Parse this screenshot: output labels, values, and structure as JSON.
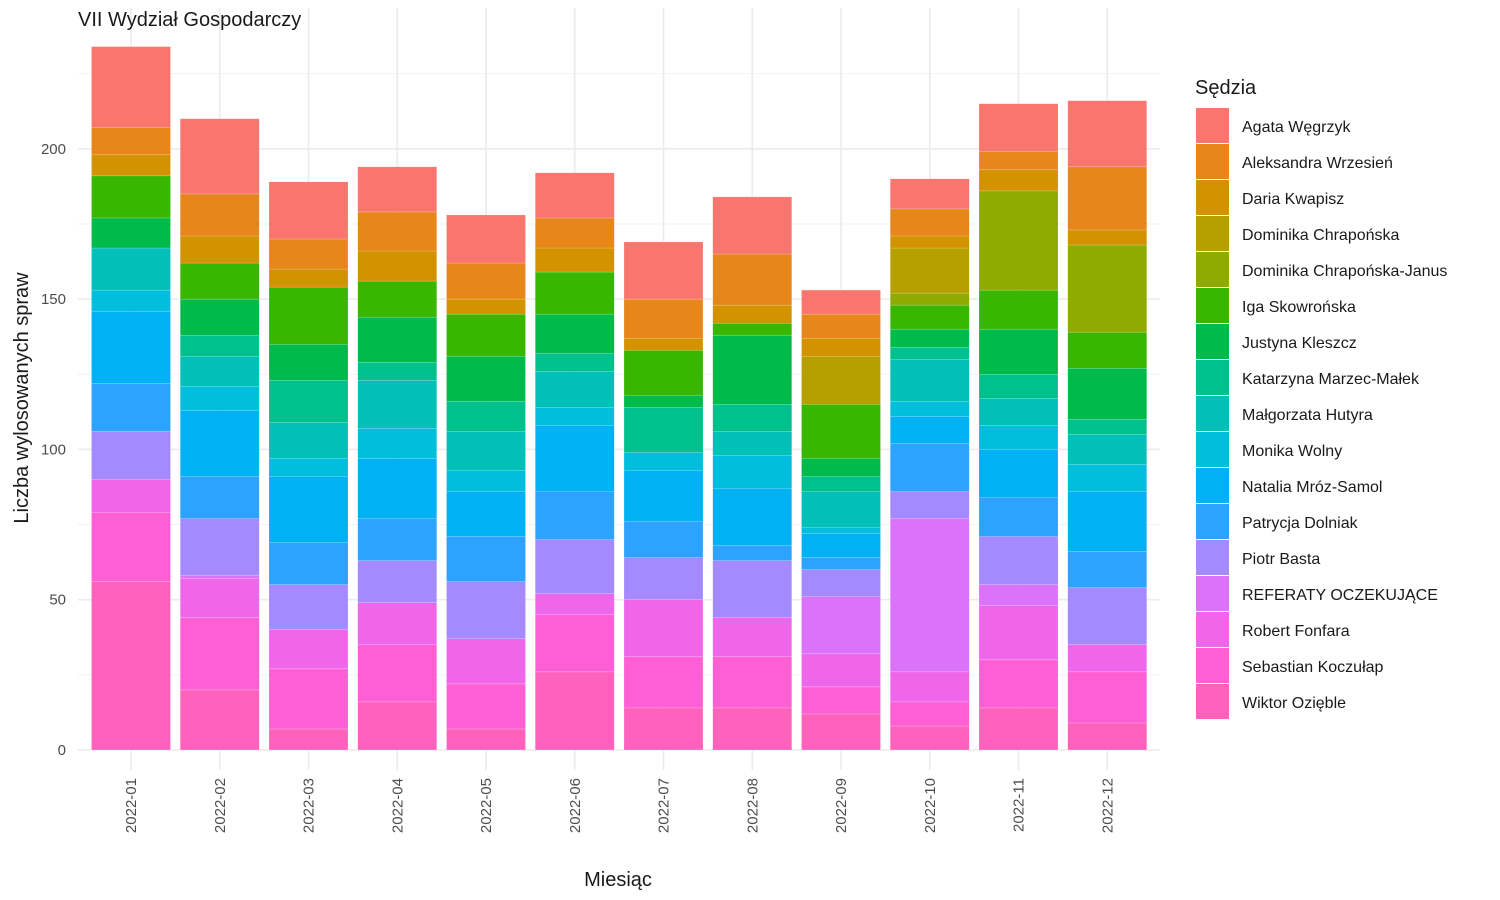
{
  "chart_data": {
    "type": "bar",
    "stacked": true,
    "title": "VII Wydział Gospodarczy",
    "xlabel": "Miesiąc",
    "ylabel": "Liczba wylosowanych spraw",
    "ylim": [
      0,
      240
    ],
    "yticks": [
      0,
      50,
      100,
      150,
      200
    ],
    "grid": true,
    "legend_title": "Sędzia",
    "legend_position": "right",
    "categories": [
      "2022-01",
      "2022-02",
      "2022-03",
      "2022-04",
      "2022-05",
      "2022-06",
      "2022-07",
      "2022-08",
      "2022-09",
      "2022-10",
      "2022-11",
      "2022-12"
    ],
    "series": [
      {
        "name": "Wiktor Ozięble",
        "color": "#FF62BC",
        "values": [
          56,
          20,
          7,
          16,
          7,
          26,
          14,
          14,
          12,
          8,
          14,
          9
        ]
      },
      {
        "name": "Sebastian Koczułap",
        "color": "#FF5FD4",
        "values": [
          23,
          24,
          20,
          19,
          15,
          19,
          17,
          17,
          9,
          8,
          16,
          17
        ]
      },
      {
        "name": "Robert Fonfara",
        "color": "#F066EA",
        "values": [
          11,
          13,
          13,
          14,
          15,
          7,
          19,
          13,
          11,
          10,
          18,
          9
        ]
      },
      {
        "name": "REFERATY OCZEKUJĄCE",
        "color": "#DC71FA",
        "values": [
          0,
          1,
          0,
          0,
          0,
          0,
          0,
          0,
          19,
          51,
          7,
          0
        ]
      },
      {
        "name": "Piotr Basta",
        "color": "#A58AFF",
        "values": [
          16,
          19,
          15,
          14,
          19,
          18,
          14,
          19,
          9,
          9,
          16,
          19
        ]
      },
      {
        "name": "Patrycja Dolniak",
        "color": "#2DA2FF",
        "values": [
          16,
          14,
          14,
          14,
          15,
          16,
          12,
          5,
          4,
          16,
          13,
          12
        ]
      },
      {
        "name": "Natalia Mróz-Samol",
        "color": "#00B2F3",
        "values": [
          24,
          22,
          22,
          20,
          15,
          22,
          17,
          19,
          8,
          9,
          16,
          20
        ]
      },
      {
        "name": "Monika Wolny",
        "color": "#00BEDC",
        "values": [
          7,
          8,
          6,
          10,
          7,
          6,
          6,
          11,
          2,
          5,
          8,
          9
        ]
      },
      {
        "name": "Małgorzata Hutyra",
        "color": "#00C0B8",
        "values": [
          14,
          10,
          12,
          16,
          13,
          12,
          0,
          8,
          12,
          14,
          9,
          10
        ]
      },
      {
        "name": "Katarzyna Marzec-Małek",
        "color": "#00C08B",
        "values": [
          0,
          7,
          14,
          6,
          10,
          6,
          15,
          9,
          5,
          4,
          8,
          5
        ]
      },
      {
        "name": "Justyna Kleszcz",
        "color": "#00BA4A",
        "values": [
          10,
          12,
          12,
          15,
          15,
          13,
          4,
          23,
          6,
          6,
          15,
          17
        ]
      },
      {
        "name": "Iga Skowrońska",
        "color": "#39B600",
        "values": [
          14,
          12,
          19,
          12,
          14,
          14,
          15,
          4,
          18,
          8,
          13,
          12
        ]
      },
      {
        "name": "Dominika Chrapońska-Janus",
        "color": "#8FAA00",
        "values": [
          0,
          0,
          0,
          0,
          0,
          0,
          0,
          0,
          0,
          4,
          33,
          29
        ]
      },
      {
        "name": "Dominika Chrapońska",
        "color": "#B79F00",
        "values": [
          0,
          0,
          0,
          0,
          0,
          0,
          0,
          0,
          16,
          15,
          0,
          0
        ]
      },
      {
        "name": "Daria Kwapisz",
        "color": "#D39200",
        "values": [
          7,
          9,
          6,
          10,
          5,
          8,
          4,
          6,
          6,
          4,
          7,
          5
        ]
      },
      {
        "name": "Aleksandra Wrzesień",
        "color": "#E7861B",
        "values": [
          9,
          14,
          10,
          13,
          12,
          10,
          13,
          17,
          8,
          9,
          6,
          21
        ]
      },
      {
        "name": "Agata Węgrzyk",
        "color": "#F8766D",
        "values": [
          27,
          25,
          19,
          15,
          16,
          15,
          19,
          19,
          8,
          10,
          16,
          22
        ]
      }
    ]
  }
}
